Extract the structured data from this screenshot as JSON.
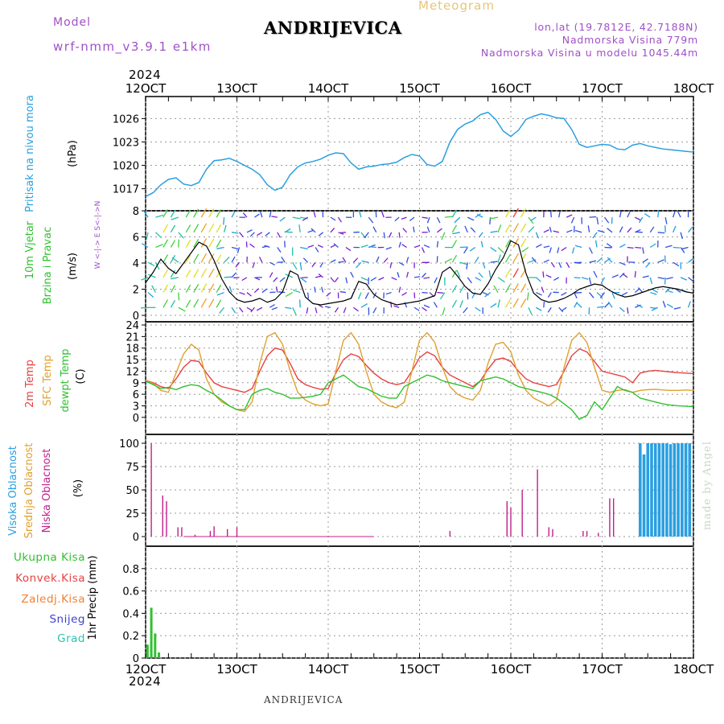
{
  "header": {
    "model_label": "Model",
    "model_name": "wrf-nmm_v3.9.1  e1km",
    "station": "ANDRIJEVICA",
    "meteogram": "Meteogram",
    "lonlat": "lon,lat (19.7812E, 42.7188N)",
    "altitude": "Nadmorska Visina 779m",
    "model_altitude": "Nadmorska Visina u modelu 1045.44m"
  },
  "footer": {
    "station": "ANDRIJEVICA",
    "credit": "made by Angel",
    "year_top": "2024",
    "year_bottom": "2024"
  },
  "colors": {
    "pressure": "#2a9fe0",
    "wind_speed": "#000000",
    "temp_2m": "#e84040",
    "temp_sfc": "#e0a030",
    "dewpoint": "#30c030",
    "high_cloud": "#2a9fe0",
    "mid_cloud": "#e0a030",
    "low_cloud": "#c0208a",
    "precip_total": "#30c030",
    "label_purple": "#a050c8"
  },
  "chart_data": [
    {
      "type": "line",
      "panel": "pressure",
      "ylabel_main": "Pritisak na nivou mora",
      "ylabel_unit": "(hPa)",
      "yticks": [
        1017,
        1020,
        1023,
        1026
      ],
      "ylim": [
        1015,
        1028
      ],
      "xlim": [
        0,
        144
      ],
      "grid": true,
      "series": [
        {
          "x": [
            0,
            2,
            4,
            6,
            8,
            10,
            12,
            14,
            16,
            18,
            20,
            22,
            24,
            26,
            28,
            30,
            32,
            34,
            36,
            38,
            40,
            42,
            44,
            46,
            48,
            50,
            52,
            54,
            56,
            58,
            60,
            62,
            64,
            66,
            68,
            70,
            72,
            74,
            76,
            78,
            80,
            82,
            84,
            86,
            88,
            90,
            92,
            94,
            96,
            98,
            100,
            102,
            104,
            106,
            108,
            110,
            112,
            114,
            116,
            118,
            120,
            122,
            124,
            126,
            128,
            130,
            132,
            134,
            136,
            138,
            140,
            142,
            144
          ],
          "values": [
            1016.0,
            1016.5,
            1017.5,
            1018.2,
            1018.4,
            1017.6,
            1017.4,
            1017.8,
            1019.5,
            1020.6,
            1020.7,
            1020.9,
            1020.5,
            1020.0,
            1019.5,
            1018.8,
            1017.5,
            1016.8,
            1017.2,
            1018.8,
            1019.8,
            1020.3,
            1020.5,
            1020.8,
            1021.3,
            1021.6,
            1021.5,
            1020.3,
            1019.5,
            1019.8,
            1019.9,
            1020.1,
            1020.2,
            1020.4,
            1021.0,
            1021.4,
            1021.2,
            1020.1,
            1019.9,
            1020.5,
            1023.0,
            1024.6,
            1025.3,
            1025.7,
            1026.5,
            1026.8,
            1025.9,
            1024.4,
            1023.7,
            1024.5,
            1025.9,
            1026.3,
            1026.6,
            1026.4,
            1026.1,
            1026.0,
            1024.6,
            1022.7,
            1022.3,
            1022.5,
            1022.7,
            1022.6,
            1022.1,
            1022.0,
            1022.6,
            1022.8,
            1022.5,
            1022.3,
            1022.1,
            1022.0,
            1021.9,
            1021.8,
            1021.7
          ]
        }
      ]
    },
    {
      "type": "line",
      "panel": "wind",
      "ylabel_main": "10m Vjetar",
      "ylabel_sub": "Brzina i Pravac",
      "ylabel_unit": "(m/s)",
      "compass": "W <-|-> E  S<-|->N",
      "yticks": [
        0,
        2,
        4,
        6,
        8
      ],
      "ylim": [
        0,
        8
      ],
      "xlim": [
        0,
        144
      ],
      "grid": true,
      "series": [
        {
          "name": "speed",
          "x": [
            0,
            2,
            4,
            6,
            8,
            10,
            12,
            14,
            16,
            18,
            20,
            22,
            24,
            26,
            28,
            30,
            32,
            34,
            36,
            38,
            40,
            42,
            44,
            46,
            48,
            50,
            52,
            54,
            56,
            58,
            60,
            62,
            64,
            66,
            68,
            70,
            72,
            74,
            76,
            78,
            80,
            82,
            84,
            86,
            88,
            90,
            92,
            94,
            96,
            98,
            100,
            102,
            104,
            106,
            108,
            110,
            112,
            114,
            116,
            118,
            120,
            122,
            124,
            126,
            128,
            130,
            132,
            134,
            136,
            138,
            140,
            142,
            144
          ],
          "values": [
            2.5,
            3.3,
            4.3,
            3.6,
            3.2,
            4.0,
            4.8,
            5.6,
            5.3,
            4.2,
            2.8,
            1.8,
            1.2,
            1.0,
            1.1,
            1.3,
            1.0,
            1.2,
            1.8,
            3.4,
            3.1,
            1.4,
            0.9,
            0.8,
            0.9,
            1.0,
            1.1,
            1.3,
            2.6,
            2.4,
            1.6,
            1.2,
            1.0,
            0.8,
            0.9,
            1.0,
            1.1,
            1.3,
            1.5,
            3.3,
            3.7,
            3.0,
            2.2,
            1.7,
            1.6,
            2.4,
            3.5,
            4.4,
            5.7,
            5.4,
            3.2,
            1.7,
            1.2,
            1.0,
            1.1,
            1.3,
            1.6,
            2.0,
            2.2,
            2.4,
            2.3,
            1.9,
            1.6,
            1.4,
            1.5,
            1.7,
            1.9,
            2.1,
            2.2,
            2.1,
            2.0,
            1.8,
            1.7
          ]
        }
      ]
    },
    {
      "type": "line",
      "panel": "temperature",
      "ylabel_lines": [
        "2m Temp",
        "SFC Temp",
        "dewpt Temp"
      ],
      "ylabel_unit": "(C)",
      "yticks": [
        0,
        3,
        6,
        9,
        12,
        15,
        18,
        21,
        24
      ],
      "ylim": [
        -1.5,
        24
      ],
      "xlim": [
        0,
        144
      ],
      "grid": true,
      "series": [
        {
          "name": "2m Temp",
          "x": [
            0,
            2,
            4,
            6,
            8,
            10,
            12,
            14,
            16,
            18,
            20,
            22,
            24,
            26,
            28,
            30,
            32,
            34,
            36,
            38,
            40,
            42,
            44,
            46,
            48,
            50,
            52,
            54,
            56,
            58,
            60,
            62,
            64,
            66,
            68,
            70,
            72,
            74,
            76,
            78,
            80,
            82,
            84,
            86,
            88,
            90,
            92,
            94,
            96,
            98,
            100,
            102,
            104,
            106,
            108,
            110,
            112,
            114,
            116,
            118,
            120,
            122,
            124,
            126,
            128,
            130,
            132,
            134,
            136,
            138,
            140,
            142,
            144
          ],
          "values": [
            9.6,
            9.0,
            8.0,
            7.5,
            10.0,
            13.0,
            14.8,
            14.5,
            11.5,
            9.0,
            8.0,
            7.5,
            7.0,
            6.5,
            7.5,
            12.0,
            16.0,
            18.0,
            17.5,
            14.0,
            10.0,
            8.5,
            7.8,
            7.3,
            7.5,
            11.5,
            15.0,
            16.5,
            15.8,
            13.5,
            11.5,
            10.0,
            9.0,
            8.5,
            9.0,
            12.0,
            15.5,
            17.0,
            16.0,
            13.0,
            11.0,
            10.0,
            9.0,
            8.0,
            9.5,
            12.5,
            15.0,
            15.4,
            14.5,
            12.0,
            10.0,
            9.0,
            8.5,
            8.0,
            8.5,
            12.0,
            16.0,
            17.8,
            17.0,
            14.5,
            12.0,
            11.5,
            11.0,
            10.5,
            9.0,
            11.5,
            12.0,
            12.2,
            12.0,
            11.8,
            11.6,
            11.5,
            11.4
          ]
        },
        {
          "name": "SFC Temp",
          "x": [
            0,
            2,
            4,
            6,
            8,
            10,
            12,
            14,
            16,
            18,
            20,
            22,
            24,
            26,
            28,
            30,
            32,
            34,
            36,
            38,
            40,
            42,
            44,
            46,
            48,
            50,
            52,
            54,
            56,
            58,
            60,
            62,
            64,
            66,
            68,
            70,
            72,
            74,
            76,
            78,
            80,
            82,
            84,
            86,
            88,
            90,
            92,
            94,
            96,
            98,
            100,
            102,
            104,
            106,
            108,
            110,
            112,
            114,
            116,
            118,
            120,
            122,
            124,
            126,
            128,
            130,
            132,
            134,
            136,
            138,
            140,
            142,
            144
          ],
          "values": [
            9.5,
            8.8,
            7.0,
            6.5,
            11.5,
            16.5,
            19.0,
            17.5,
            10.0,
            6.0,
            4.0,
            3.0,
            2.0,
            1.5,
            4.0,
            14.0,
            21.0,
            22.0,
            19.0,
            12.0,
            6.5,
            4.5,
            3.5,
            3.0,
            3.5,
            12.0,
            20.0,
            22.0,
            19.0,
            12.0,
            6.0,
            4.0,
            3.0,
            2.5,
            4.0,
            12.0,
            20.0,
            22.0,
            19.5,
            13.0,
            8.0,
            6.0,
            5.0,
            4.5,
            7.0,
            14.0,
            19.0,
            19.5,
            17.0,
            11.0,
            7.0,
            5.0,
            4.0,
            3.0,
            4.5,
            13.0,
            20.0,
            22.0,
            19.5,
            13.0,
            7.0,
            6.5,
            7.0,
            7.2,
            6.5,
            7.0,
            7.2,
            7.3,
            7.1,
            7.0,
            7.0,
            7.1,
            7.0
          ]
        },
        {
          "name": "dewpt Temp",
          "x": [
            0,
            2,
            4,
            6,
            8,
            10,
            12,
            14,
            16,
            18,
            20,
            22,
            24,
            26,
            28,
            30,
            32,
            34,
            36,
            38,
            40,
            42,
            44,
            46,
            48,
            50,
            52,
            54,
            56,
            58,
            60,
            62,
            64,
            66,
            68,
            70,
            72,
            74,
            76,
            78,
            80,
            82,
            84,
            86,
            88,
            90,
            92,
            94,
            96,
            98,
            100,
            102,
            104,
            106,
            108,
            110,
            112,
            114,
            116,
            118,
            120,
            122,
            124,
            126,
            128,
            130,
            132,
            134,
            136,
            138,
            140,
            142,
            144
          ],
          "values": [
            9.4,
            8.5,
            7.5,
            7.8,
            7.2,
            8.0,
            8.5,
            8.2,
            7.0,
            6.0,
            4.5,
            3.0,
            2.0,
            2.0,
            6.0,
            7.0,
            7.5,
            6.5,
            6.0,
            5.0,
            5.0,
            5.2,
            5.5,
            6.0,
            9.0,
            10.0,
            11.0,
            9.5,
            8.0,
            7.5,
            6.5,
            5.5,
            5.0,
            5.0,
            8.0,
            9.0,
            10.0,
            11.0,
            10.5,
            9.5,
            9.0,
            8.5,
            8.0,
            7.5,
            9.5,
            10.0,
            10.5,
            10.0,
            9.0,
            8.0,
            7.5,
            7.0,
            6.5,
            6.0,
            5.0,
            3.5,
            2.0,
            -0.5,
            0.5,
            4.0,
            2.0,
            5.0,
            8.0,
            7.0,
            6.5,
            5.0,
            4.5,
            4.0,
            3.5,
            3.2,
            3.0,
            2.9,
            2.8
          ]
        }
      ]
    },
    {
      "type": "bar",
      "panel": "cloud",
      "ylabel_lines": [
        "Visoka Oblacnost",
        "Srednja Oblacnost",
        "Niska Oblacnost"
      ],
      "ylabel_unit": "(%)",
      "yticks": [
        0,
        25,
        50,
        75,
        100
      ],
      "ylim": [
        0,
        100
      ],
      "xlim": [
        0,
        144
      ],
      "grid": true,
      "series": [
        {
          "name": "Niska Oblacnost",
          "x": [
            1.5,
            4.5,
            5.5,
            8.5,
            9.5,
            13,
            17,
            18,
            21.5,
            24,
            80,
            95,
            96,
            99,
            103,
            106,
            107,
            115,
            116,
            119,
            122,
            123
          ],
          "values": [
            100,
            44,
            38,
            10,
            10,
            2,
            6,
            11,
            8,
            10,
            6,
            38,
            31,
            50,
            72,
            10,
            8,
            6,
            6,
            4,
            41,
            41
          ]
        },
        {
          "name": "Visoka Oblacnost",
          "x": [
            130,
            131,
            132,
            133,
            134,
            135,
            136,
            137,
            138,
            139,
            140,
            141,
            142,
            143
          ],
          "values": [
            100,
            88,
            100,
            100,
            100,
            100,
            100,
            100,
            99,
            100,
            100,
            100,
            100,
            100
          ]
        }
      ]
    },
    {
      "type": "bar",
      "panel": "precip",
      "legend": [
        "Ukupna Kisa",
        "Konvek.Kisa",
        "Zaledj.Kisa",
        "Snijeg",
        "Grad"
      ],
      "ylabel_main": "1hr Precip (mm)",
      "yticks": [
        0,
        0.2,
        0.4,
        0.6,
        0.8
      ],
      "ylim": [
        0,
        1.0
      ],
      "xlim": [
        0,
        144
      ],
      "grid": true,
      "series": [
        {
          "name": "Ukupna Kisa",
          "x": [
            0.5,
            1.5,
            2.5,
            3.5
          ],
          "values": [
            0.12,
            0.45,
            0.22,
            0.05
          ]
        }
      ]
    }
  ],
  "x_axis": {
    "tick_labels": [
      "12OCT",
      "13OCT",
      "14OCT",
      "15OCT",
      "16OCT",
      "17OCT",
      "18OCT"
    ],
    "tick_hours": [
      0,
      24,
      48,
      72,
      96,
      120,
      144
    ]
  }
}
